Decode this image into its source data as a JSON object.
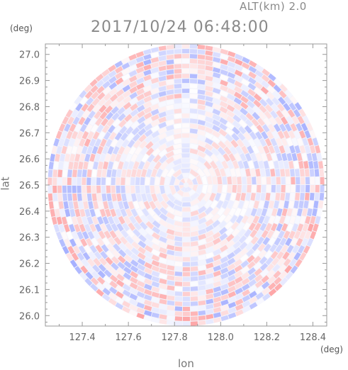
{
  "header": {
    "altitude_label": "ALT(km) 2.0",
    "timestamp": "2017/10/24 06:48:00"
  },
  "chart_data": {
    "type": "heatmap",
    "xlabel": "lon",
    "ylabel": "lat",
    "x_unit": "(deg)",
    "y_unit": "(deg)",
    "xlim": [
      127.24,
      128.46
    ],
    "ylim": [
      25.96,
      27.04
    ],
    "x_ticks": [
      127.4,
      127.6,
      127.8,
      128.0,
      128.2,
      128.4
    ],
    "x_tick_labels": [
      "127.4",
      "127.6",
      "127.8",
      "128.0",
      "128.2",
      "128.4"
    ],
    "y_ticks": [
      26.0,
      26.1,
      26.2,
      26.3,
      26.4,
      26.5,
      26.6,
      26.7,
      26.8,
      26.9,
      27.0
    ],
    "y_tick_labels": [
      "26.0",
      "26.1",
      "26.2",
      "26.3",
      "26.4",
      "26.5",
      "26.6",
      "26.7",
      "26.8",
      "26.9",
      "27.0"
    ],
    "radar_center": [
      127.85,
      26.5
    ],
    "radar_radius_lon": 0.6,
    "radar_radius_lat": 0.54,
    "colormap": [
      "#9aa6ff",
      "#ffffff",
      "#ff9a9a"
    ],
    "grid": false
  }
}
